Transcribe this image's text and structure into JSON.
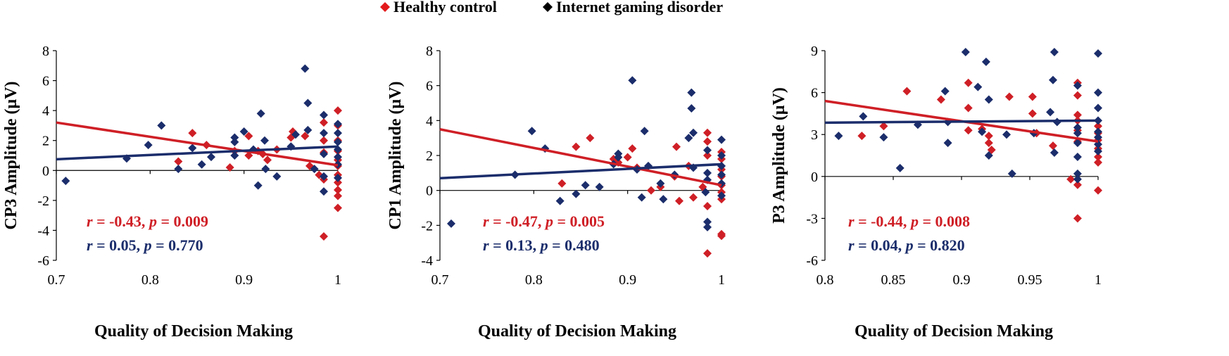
{
  "legend": [
    {
      "label": "Healthy control",
      "color": "#e31a1c"
    },
    {
      "label": "Internet gaming disorder",
      "color": "#000000"
    }
  ],
  "colors": {
    "hc": "#cf1f26",
    "igd": "#1b2d6b",
    "axis": "#000000"
  },
  "chart_data": [
    {
      "type": "scatter",
      "ylabel": "CP3 Amplitude (μV)",
      "xlabel": "Quality of Decision Making",
      "xlim": [
        0.7,
        1.0
      ],
      "ylim": [
        -6,
        8
      ],
      "xticks": [
        0.7,
        0.8,
        0.9,
        1.0
      ],
      "xtick_labels": [
        "0.7",
        "0.8",
        "0.9",
        "1"
      ],
      "yticks": [
        -6,
        -4,
        -2,
        0,
        2,
        4,
        6,
        8
      ],
      "ytick_labels": [
        "-6",
        "-4",
        "-2",
        "0",
        "2",
        "4",
        "6",
        "8"
      ],
      "stats": [
        {
          "series": "Healthy control",
          "r_label": "r",
          "r_value": " = -0.43, ",
          "p_label": "p",
          "p_value": " = 0.009"
        },
        {
          "series": "Internet gaming disorder",
          "r_label": "r",
          "r_value": " = 0.05, ",
          "p_label": "p",
          "p_value": " = 0.770"
        }
      ],
      "series": [
        {
          "name": "Healthy control",
          "trend": [
            [
              0.7,
              3.2
            ],
            [
              1.0,
              0.35
            ]
          ],
          "points": [
            [
              0.83,
              0.6
            ],
            [
              0.845,
              2.5
            ],
            [
              0.86,
              1.7
            ],
            [
              0.885,
              0.2
            ],
            [
              0.89,
              1.3
            ],
            [
              0.905,
              2.3
            ],
            [
              0.905,
              1.0
            ],
            [
              0.915,
              1.3
            ],
            [
              0.92,
              1.1
            ],
            [
              0.925,
              0.7
            ],
            [
              0.935,
              1.4
            ],
            [
              0.95,
              2.2
            ],
            [
              0.952,
              2.6
            ],
            [
              0.965,
              2.3
            ],
            [
              0.97,
              0.3
            ],
            [
              0.98,
              -0.3
            ],
            [
              0.985,
              3.2
            ],
            [
              0.985,
              2.0
            ],
            [
              0.985,
              1.2
            ],
            [
              0.985,
              -0.6
            ],
            [
              0.985,
              -4.4
            ],
            [
              1.0,
              4.0
            ],
            [
              1.0,
              3.0
            ],
            [
              1.0,
              2.0
            ],
            [
              1.0,
              1.3
            ],
            [
              1.0,
              0.7
            ],
            [
              1.0,
              0.3
            ],
            [
              1.0,
              -0.3
            ],
            [
              1.0,
              -0.8
            ],
            [
              1.0,
              -1.3
            ],
            [
              1.0,
              -1.7
            ],
            [
              1.0,
              -2.5
            ]
          ]
        },
        {
          "name": "Internet gaming disorder",
          "trend": [
            [
              0.7,
              0.75
            ],
            [
              1.0,
              1.6
            ]
          ],
          "points": [
            [
              0.71,
              -0.7
            ],
            [
              0.775,
              0.8
            ],
            [
              0.798,
              1.7
            ],
            [
              0.812,
              3.0
            ],
            [
              0.83,
              0.1
            ],
            [
              0.845,
              1.5
            ],
            [
              0.855,
              0.4
            ],
            [
              0.865,
              0.9
            ],
            [
              0.89,
              2.2
            ],
            [
              0.89,
              1.9
            ],
            [
              0.89,
              1.0
            ],
            [
              0.9,
              2.6
            ],
            [
              0.91,
              1.4
            ],
            [
              0.915,
              -1.0
            ],
            [
              0.918,
              3.8
            ],
            [
              0.922,
              2.0
            ],
            [
              0.923,
              0.1
            ],
            [
              0.935,
              -0.4
            ],
            [
              0.95,
              1.6
            ],
            [
              0.955,
              2.4
            ],
            [
              0.965,
              6.8
            ],
            [
              0.968,
              4.5
            ],
            [
              0.968,
              2.7
            ],
            [
              0.975,
              0.1
            ],
            [
              0.985,
              3.7
            ],
            [
              0.985,
              2.5
            ],
            [
              0.985,
              1.1
            ],
            [
              0.985,
              -1.4
            ],
            [
              0.985,
              -0.4
            ],
            [
              1.0,
              3.1
            ],
            [
              1.0,
              2.5
            ],
            [
              1.0,
              1.9
            ],
            [
              1.0,
              1.4
            ],
            [
              1.0,
              0.9
            ],
            [
              1.0,
              0.4
            ],
            [
              1.0,
              -0.5
            ]
          ]
        }
      ]
    },
    {
      "type": "scatter",
      "ylabel": "CP1 Amplitude (μV)",
      "xlabel": "Quality of Decision Making",
      "xlim": [
        0.7,
        1.0
      ],
      "ylim": [
        -4,
        8
      ],
      "xticks": [
        0.7,
        0.8,
        0.9,
        1.0
      ],
      "xtick_labels": [
        "0.7",
        "0.8",
        "0.9",
        "1"
      ],
      "yticks": [
        -4,
        -2,
        0,
        2,
        4,
        6,
        8
      ],
      "ytick_labels": [
        "-4",
        "-2",
        "0",
        "2",
        "4",
        "6",
        "8"
      ],
      "stats": [
        {
          "series": "Healthy control",
          "r_label": "r",
          "r_value": " = -0.47, ",
          "p_label": "p",
          "p_value": " = 0.005"
        },
        {
          "series": "Internet gaming disorder",
          "r_label": "r",
          "r_value": " = 0.13, ",
          "p_label": "p",
          "p_value": " = 0.480"
        }
      ],
      "series": [
        {
          "name": "Healthy control",
          "trend": [
            [
              0.7,
              3.5
            ],
            [
              1.0,
              0.3
            ]
          ],
          "points": [
            [
              0.83,
              0.4
            ],
            [
              0.845,
              2.5
            ],
            [
              0.86,
              3.0
            ],
            [
              0.885,
              1.8
            ],
            [
              0.89,
              1.6
            ],
            [
              0.9,
              1.9
            ],
            [
              0.905,
              2.4
            ],
            [
              0.91,
              1.3
            ],
            [
              0.925,
              0.0
            ],
            [
              0.935,
              0.2
            ],
            [
              0.95,
              0.8
            ],
            [
              0.952,
              2.5
            ],
            [
              0.955,
              -0.6
            ],
            [
              0.965,
              1.4
            ],
            [
              0.97,
              -0.4
            ],
            [
              0.98,
              0.2
            ],
            [
              0.985,
              3.3
            ],
            [
              0.985,
              2.8
            ],
            [
              0.985,
              2.0
            ],
            [
              0.985,
              -0.9
            ],
            [
              0.985,
              -3.6
            ],
            [
              1.0,
              2.2
            ],
            [
              1.0,
              1.8
            ],
            [
              1.0,
              1.2
            ],
            [
              1.0,
              0.8
            ],
            [
              1.0,
              0.3
            ],
            [
              1.0,
              -0.1
            ],
            [
              1.0,
              -0.5
            ],
            [
              1.0,
              -2.5
            ],
            [
              1.0,
              -2.6
            ]
          ]
        },
        {
          "name": "Internet gaming disorder",
          "trend": [
            [
              0.7,
              0.7
            ],
            [
              1.0,
              1.5
            ]
          ],
          "points": [
            [
              0.712,
              -1.9
            ],
            [
              0.78,
              0.9
            ],
            [
              0.798,
              3.4
            ],
            [
              0.812,
              2.4
            ],
            [
              0.828,
              -0.6
            ],
            [
              0.845,
              -0.2
            ],
            [
              0.855,
              0.3
            ],
            [
              0.87,
              0.2
            ],
            [
              0.885,
              1.5
            ],
            [
              0.89,
              2.1
            ],
            [
              0.89,
              1.9
            ],
            [
              0.905,
              6.3
            ],
            [
              0.91,
              1.2
            ],
            [
              0.915,
              -0.4
            ],
            [
              0.918,
              3.4
            ],
            [
              0.922,
              1.4
            ],
            [
              0.935,
              0.4
            ],
            [
              0.938,
              -0.5
            ],
            [
              0.95,
              0.9
            ],
            [
              0.965,
              3.0
            ],
            [
              0.968,
              5.6
            ],
            [
              0.968,
              4.7
            ],
            [
              0.97,
              3.3
            ],
            [
              0.97,
              1.3
            ],
            [
              0.983,
              -0.1
            ],
            [
              0.985,
              2.3
            ],
            [
              0.985,
              1.0
            ],
            [
              0.985,
              -2.1
            ],
            [
              0.985,
              -1.8
            ],
            [
              0.985,
              0.6
            ],
            [
              1.0,
              2.9
            ],
            [
              1.0,
              2.0
            ],
            [
              1.0,
              1.4
            ],
            [
              1.0,
              0.9
            ],
            [
              1.0,
              0.4
            ],
            [
              1.0,
              -0.3
            ]
          ]
        }
      ]
    },
    {
      "type": "scatter",
      "ylabel": "P3 Amplitude (μV)",
      "xlabel": "Quality of Decision Making",
      "xlim": [
        0.8,
        1.0
      ],
      "ylim": [
        -6,
        9
      ],
      "xticks": [
        0.8,
        0.85,
        0.9,
        0.95,
        1.0
      ],
      "xtick_labels": [
        "0.8",
        "0.85",
        "0.9",
        "0.95",
        "1"
      ],
      "yticks": [
        -6,
        -3,
        0,
        3,
        6,
        9
      ],
      "ytick_labels": [
        "-6",
        "-3",
        "0",
        "3",
        "6",
        "9"
      ],
      "stats": [
        {
          "series": "Healthy control",
          "r_label": "r",
          "r_value": " = -0.44, ",
          "p_label": "p",
          "p_value": " = 0.008"
        },
        {
          "series": "Internet gaming disorder",
          "r_label": "r",
          "r_value": " = 0.04, ",
          "p_label": "p",
          "p_value": " = 0.820"
        }
      ],
      "series": [
        {
          "name": "Healthy control",
          "trend": [
            [
              0.8,
              5.4
            ],
            [
              1.0,
              2.5
            ]
          ],
          "points": [
            [
              0.827,
              2.9
            ],
            [
              0.843,
              3.6
            ],
            [
              0.86,
              6.1
            ],
            [
              0.885,
              5.5
            ],
            [
              0.905,
              6.7
            ],
            [
              0.905,
              4.9
            ],
            [
              0.905,
              3.3
            ],
            [
              0.915,
              3.4
            ],
            [
              0.92,
              2.9
            ],
            [
              0.92,
              2.4
            ],
            [
              0.922,
              1.9
            ],
            [
              0.935,
              5.7
            ],
            [
              0.952,
              5.7
            ],
            [
              0.952,
              4.5
            ],
            [
              0.955,
              3.1
            ],
            [
              0.967,
              2.2
            ],
            [
              0.98,
              -0.2
            ],
            [
              0.985,
              6.7
            ],
            [
              0.985,
              5.8
            ],
            [
              0.985,
              4.4
            ],
            [
              0.985,
              4.0
            ],
            [
              0.985,
              3.3
            ],
            [
              0.985,
              2.5
            ],
            [
              0.985,
              -0.6
            ],
            [
              0.985,
              -3.0
            ],
            [
              1.0,
              3.6
            ],
            [
              1.0,
              3.1
            ],
            [
              1.0,
              2.6
            ],
            [
              1.0,
              2.0
            ],
            [
              1.0,
              1.4
            ],
            [
              1.0,
              1.0
            ],
            [
              1.0,
              -1.0
            ]
          ]
        },
        {
          "name": "Internet gaming disorder",
          "trend": [
            [
              0.8,
              3.85
            ],
            [
              1.0,
              4.0
            ]
          ],
          "points": [
            [
              0.81,
              2.9
            ],
            [
              0.828,
              4.3
            ],
            [
              0.843,
              2.8
            ],
            [
              0.855,
              0.6
            ],
            [
              0.868,
              3.7
            ],
            [
              0.888,
              6.1
            ],
            [
              0.89,
              3.9
            ],
            [
              0.89,
              2.4
            ],
            [
              0.903,
              8.9
            ],
            [
              0.912,
              6.4
            ],
            [
              0.915,
              3.2
            ],
            [
              0.918,
              8.2
            ],
            [
              0.92,
              1.5
            ],
            [
              0.92,
              5.5
            ],
            [
              0.933,
              3.0
            ],
            [
              0.937,
              0.2
            ],
            [
              0.953,
              3.1
            ],
            [
              0.965,
              4.6
            ],
            [
              0.967,
              6.9
            ],
            [
              0.968,
              8.9
            ],
            [
              0.968,
              1.7
            ],
            [
              0.97,
              3.9
            ],
            [
              0.985,
              6.5
            ],
            [
              0.985,
              3.5
            ],
            [
              0.985,
              3.1
            ],
            [
              0.985,
              2.4
            ],
            [
              0.985,
              1.4
            ],
            [
              0.985,
              0.2
            ],
            [
              0.985,
              -0.2
            ],
            [
              1.0,
              8.8
            ],
            [
              1.0,
              6.0
            ],
            [
              1.0,
              4.9
            ],
            [
              1.0,
              4.0
            ],
            [
              1.0,
              3.2
            ],
            [
              1.0,
              2.8
            ],
            [
              1.0,
              2.3
            ],
            [
              1.0,
              1.8
            ]
          ]
        }
      ]
    }
  ]
}
